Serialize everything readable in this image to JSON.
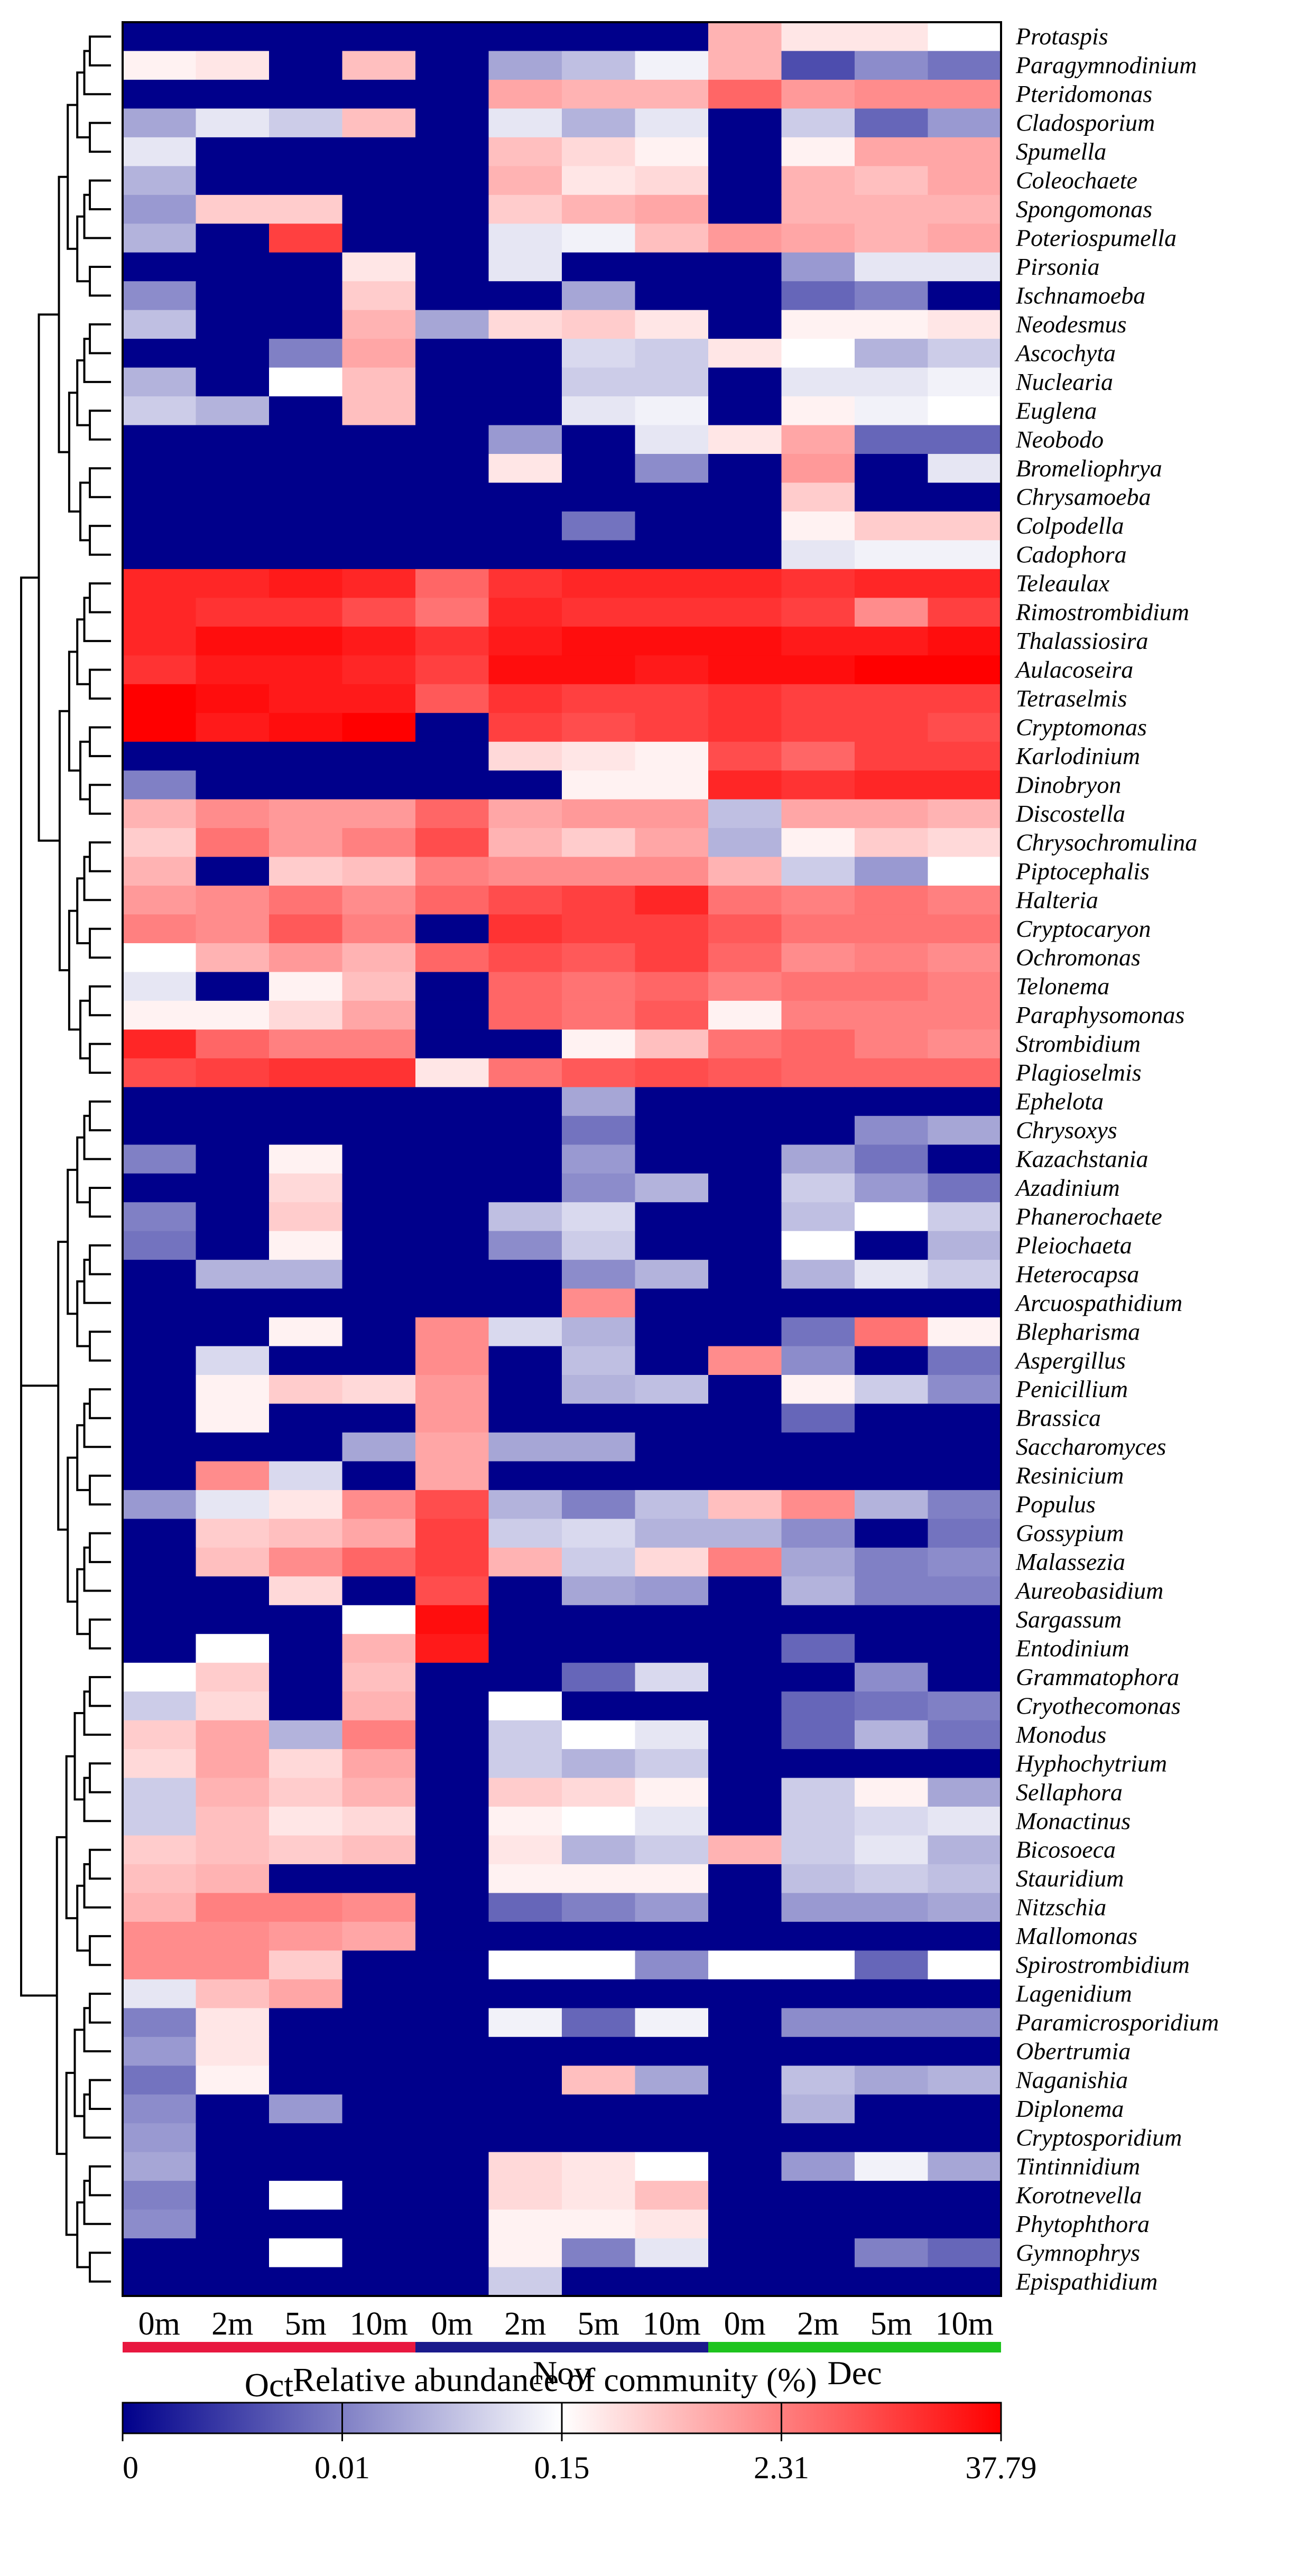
{
  "chart_data": {
    "type": "heatmap",
    "title": "",
    "colorbar_title": "Relative abundance of community (%)",
    "colorbar_ticks": [
      "0",
      "0.01",
      "0.15",
      "2.31",
      "37.79"
    ],
    "colorscale": [
      "#00008b",
      "#ffffff",
      "#ff0000"
    ],
    "column_labels": [
      "0m",
      "2m",
      "5m",
      "10m",
      "0m",
      "2m",
      "5m",
      "10m",
      "0m",
      "2m",
      "5m",
      "10m"
    ],
    "months": [
      {
        "name": "Oct",
        "color": "#e8173f"
      },
      {
        "name": "Nov",
        "color": "#1a1a8c"
      },
      {
        "name": "Dec",
        "color": "#1ec41e"
      }
    ],
    "rows": [
      "Protaspis",
      "Paragymnodinium",
      "Pteridomonas",
      "Cladosporium",
      "Spumella",
      "Coleochaete",
      "Spongomonas",
      "Poteriospumella",
      "Pirsonia",
      "Ischnamoeba",
      "Neodesmus",
      "Ascochyta",
      "Nuclearia",
      "Euglena",
      "Neobodo",
      "Bromeliophrya",
      "Chrysamoeba",
      "Colpodella",
      "Cadophora",
      "Teleaulax",
      "Rimostrombidium",
      "Thalassiosira",
      "Aulacoseira",
      "Tetraselmis",
      "Cryptomonas",
      "Karlodinium",
      "Dinobryon",
      "Discostella",
      "Chrysochromulina",
      "Piptocephalis",
      "Halteria",
      "Cryptocaryon",
      "Ochromonas",
      "Telonema",
      "Paraphysomonas",
      "Strombidium",
      "Plagioselmis",
      "Ephelota",
      "Chrysoxys",
      "Kazachstania",
      "Azadinium",
      "Phanerochaete",
      "Pleiochaeta",
      "Heterocapsa",
      "Arcuospathidium",
      "Blepharisma",
      "Aspergillus",
      "Penicillium",
      "Brassica",
      "Saccharomyces",
      "Resinicium",
      "Populus",
      "Gossypium",
      "Malassezia",
      "Aureobasidium",
      "Sargassum",
      "Entodinium",
      "Grammatophora",
      "Cryothecomonas",
      "Monodus",
      "Hyphochytrium",
      "Sellaphora",
      "Monactinus",
      "Bicosoeca",
      "Stauridium",
      "Nitzschia",
      "Mallomonas",
      "Spirostrombidium",
      "Lagenidium",
      "Paramicrosporidium",
      "Obertrumia",
      "Naganishia",
      "Diplonema",
      "Cryptosporidium",
      "Tintinnidium",
      "Korotnevella",
      "Phytophthora",
      "Gymnophrys",
      "Epispathidium"
    ],
    "values": [
      [
        -1,
        -1,
        -1,
        -1,
        -1,
        -1,
        -1,
        -1,
        0.3,
        0.1,
        0.1,
        0.0
      ],
      [
        0.05,
        0.1,
        -1,
        0.25,
        -1,
        -0.35,
        -0.25,
        -0.05,
        0.3,
        -0.7,
        -0.45,
        -0.55
      ],
      [
        -1,
        -1,
        -1,
        -1,
        -1,
        0.35,
        0.3,
        0.3,
        0.6,
        0.4,
        0.45,
        0.45
      ],
      [
        -0.35,
        -0.1,
        -0.2,
        0.25,
        -1,
        -0.1,
        -0.3,
        -0.1,
        -1,
        -0.2,
        -0.6,
        -0.4
      ],
      [
        -0.1,
        -1,
        -1,
        -1,
        -1,
        0.25,
        0.15,
        0.05,
        -1,
        0.05,
        0.35,
        0.35
      ],
      [
        -0.3,
        -1,
        -1,
        -1,
        -1,
        0.3,
        0.1,
        0.15,
        -1,
        0.3,
        0.25,
        0.35
      ],
      [
        -0.4,
        0.2,
        0.2,
        -1,
        -1,
        0.2,
        0.3,
        0.35,
        -1,
        0.3,
        0.3,
        0.3
      ],
      [
        -0.3,
        -1,
        0.75,
        -1,
        -1,
        -0.1,
        -0.05,
        0.25,
        0.4,
        0.35,
        0.3,
        0.35
      ],
      [
        -1,
        -1,
        -1,
        0.1,
        -1,
        -0.1,
        -1,
        -1,
        -1,
        -0.4,
        -0.1,
        -0.1
      ],
      [
        -0.45,
        -1,
        -1,
        0.2,
        -1,
        -1,
        -0.35,
        -1,
        -1,
        -0.6,
        -0.5,
        -1
      ],
      [
        -0.25,
        -1,
        -1,
        0.3,
        -0.35,
        0.15,
        0.2,
        0.1,
        -1,
        0.05,
        0.05,
        0.1
      ],
      [
        -1,
        -1,
        -0.5,
        0.35,
        -1,
        -1,
        -0.15,
        -0.2,
        0.1,
        0.0,
        -0.3,
        -0.2
      ],
      [
        -0.3,
        -1,
        0.0,
        0.25,
        -1,
        -1,
        -0.2,
        -0.2,
        -1,
        -0.1,
        -0.1,
        -0.05
      ],
      [
        -0.2,
        -0.3,
        -1,
        0.25,
        -1,
        -1,
        -0.1,
        -0.05,
        -1,
        0.05,
        -0.05,
        0.0
      ],
      [
        -1,
        -1,
        -1,
        -1,
        -1,
        -0.4,
        -1,
        -0.1,
        0.1,
        0.35,
        -0.6,
        -0.6
      ],
      [
        -1,
        -1,
        -1,
        -1,
        -1,
        0.1,
        -1,
        -0.45,
        -1,
        0.4,
        -1,
        -0.1
      ],
      [
        -1,
        -1,
        -1,
        -1,
        -1,
        -1,
        -1,
        -1,
        -1,
        0.2,
        -1,
        -1
      ],
      [
        -1,
        -1,
        -1,
        -1,
        -1,
        -1,
        -0.55,
        -1,
        -1,
        0.05,
        0.2,
        0.2
      ],
      [
        -1,
        -1,
        -1,
        -1,
        -1,
        -1,
        -1,
        -1,
        -1,
        -0.1,
        -0.05,
        -0.05
      ],
      [
        0.85,
        0.85,
        0.9,
        0.85,
        0.6,
        0.8,
        0.85,
        0.85,
        0.85,
        0.8,
        0.85,
        0.85
      ],
      [
        0.85,
        0.8,
        0.8,
        0.7,
        0.55,
        0.85,
        0.8,
        0.8,
        0.8,
        0.75,
        0.45,
        0.75
      ],
      [
        0.85,
        0.95,
        0.95,
        0.9,
        0.8,
        0.9,
        0.95,
        0.95,
        0.95,
        0.9,
        0.9,
        0.95
      ],
      [
        0.8,
        0.9,
        0.9,
        0.85,
        0.75,
        0.95,
        0.95,
        0.9,
        0.95,
        0.95,
        1.0,
        1.0
      ],
      [
        1.0,
        0.95,
        0.9,
        0.9,
        0.65,
        0.8,
        0.75,
        0.75,
        0.8,
        0.75,
        0.75,
        0.75
      ],
      [
        1.0,
        0.9,
        0.95,
        1.0,
        -1,
        0.75,
        0.7,
        0.75,
        0.8,
        0.75,
        0.75,
        0.7
      ],
      [
        -1,
        -1,
        -1,
        -1,
        -1,
        0.15,
        0.1,
        0.05,
        0.7,
        0.6,
        0.75,
        0.75
      ],
      [
        -0.5,
        -1,
        -1,
        -1,
        -1,
        -1,
        0.05,
        0.05,
        0.85,
        0.8,
        0.85,
        0.85
      ],
      [
        0.3,
        0.45,
        0.4,
        0.4,
        0.6,
        0.35,
        0.4,
        0.4,
        -0.25,
        0.35,
        0.35,
        0.3
      ],
      [
        0.2,
        0.55,
        0.4,
        0.5,
        0.7,
        0.3,
        0.2,
        0.35,
        -0.3,
        0.05,
        0.2,
        0.15
      ],
      [
        0.3,
        -1,
        0.2,
        0.25,
        0.5,
        0.45,
        0.45,
        0.45,
        0.3,
        -0.2,
        -0.4,
        0.0
      ],
      [
        0.4,
        0.45,
        0.55,
        0.45,
        0.6,
        0.7,
        0.75,
        0.85,
        0.55,
        0.5,
        0.55,
        0.5
      ],
      [
        0.5,
        0.45,
        0.65,
        0.5,
        -1,
        0.8,
        0.75,
        0.75,
        0.65,
        0.55,
        0.55,
        0.55
      ],
      [
        0.0,
        0.3,
        0.4,
        0.3,
        0.6,
        0.7,
        0.65,
        0.75,
        0.6,
        0.45,
        0.5,
        0.45
      ],
      [
        -0.1,
        -1,
        0.05,
        0.25,
        -1,
        0.6,
        0.55,
        0.6,
        0.5,
        0.55,
        0.55,
        0.5
      ],
      [
        0.05,
        0.05,
        0.15,
        0.35,
        -1,
        0.6,
        0.55,
        0.65,
        0.05,
        0.5,
        0.5,
        0.5
      ],
      [
        0.85,
        0.6,
        0.5,
        0.5,
        -1,
        -1,
        0.05,
        0.25,
        0.55,
        0.6,
        0.5,
        0.45
      ],
      [
        0.7,
        0.75,
        0.8,
        0.8,
        0.1,
        0.55,
        0.65,
        0.7,
        0.65,
        0.6,
        0.6,
        0.6
      ],
      [
        -1,
        -1,
        -1,
        -1,
        -1,
        -1,
        -0.35,
        -1,
        -1,
        -1,
        -1,
        -1
      ],
      [
        -1,
        -1,
        -1,
        -1,
        -1,
        -1,
        -0.55,
        -1,
        -1,
        -1,
        -0.45,
        -0.35
      ],
      [
        -0.5,
        -1,
        0.05,
        -1,
        -1,
        -1,
        -0.4,
        -1,
        -1,
        -0.35,
        -0.55,
        -1
      ],
      [
        -1,
        -1,
        0.15,
        -1,
        -1,
        -1,
        -0.45,
        -0.3,
        -1,
        -0.2,
        -0.4,
        -0.55
      ],
      [
        -0.5,
        -1,
        0.2,
        -1,
        -1,
        -0.25,
        -0.15,
        -1,
        -1,
        -0.25,
        0.0,
        -0.2
      ],
      [
        -0.55,
        -1,
        0.05,
        -1,
        -1,
        -0.45,
        -0.2,
        -1,
        -1,
        0.0,
        -1,
        -0.3
      ],
      [
        -1,
        -0.3,
        -0.3,
        -1,
        -1,
        -1,
        -0.45,
        -0.3,
        -1,
        -0.3,
        -0.1,
        -0.2
      ],
      [
        -1,
        -1,
        -1,
        -1,
        -1,
        -1,
        0.45,
        -1,
        -1,
        -1,
        -1,
        -1
      ],
      [
        -1,
        -1,
        0.05,
        -1,
        0.45,
        -0.15,
        -0.3,
        -1,
        -1,
        -0.55,
        0.55,
        0.05
      ],
      [
        -1,
        -0.15,
        -1,
        -1,
        0.45,
        -1,
        -0.25,
        -1,
        0.45,
        -0.45,
        -1,
        -0.55
      ],
      [
        -1,
        0.05,
        0.2,
        0.15,
        0.4,
        -1,
        -0.3,
        -0.25,
        -1,
        0.05,
        -0.2,
        -0.45
      ],
      [
        -1,
        0.05,
        -1,
        -1,
        0.4,
        -1,
        -1,
        -1,
        -1,
        -0.6,
        -1,
        -1
      ],
      [
        -1,
        -1,
        -1,
        -0.35,
        0.35,
        -0.35,
        -0.35,
        -1,
        -1,
        -1,
        -1,
        -1
      ],
      [
        -1,
        0.45,
        -0.15,
        -1,
        0.35,
        -1,
        -1,
        -1,
        -1,
        -1,
        -1,
        -1
      ],
      [
        -0.4,
        -0.1,
        0.1,
        0.45,
        0.7,
        -0.3,
        -0.5,
        -0.25,
        0.25,
        0.45,
        -0.3,
        -0.5
      ],
      [
        -1,
        0.2,
        0.25,
        0.35,
        0.75,
        -0.2,
        -0.15,
        -0.3,
        -0.3,
        -0.45,
        -1,
        -0.55
      ],
      [
        -1,
        0.25,
        0.45,
        0.6,
        0.75,
        0.3,
        -0.2,
        0.15,
        0.5,
        -0.35,
        -0.5,
        -0.45
      ],
      [
        -1,
        -1,
        0.15,
        -1,
        0.7,
        -1,
        -0.35,
        -0.4,
        -1,
        -0.3,
        -0.5,
        -0.5
      ],
      [
        -1,
        -1,
        -1,
        0.0,
        0.95,
        -1,
        -1,
        -1,
        -1,
        -1,
        -1,
        -1
      ],
      [
        -1,
        0.0,
        -1,
        0.3,
        0.9,
        -1,
        -1,
        -1,
        -1,
        -0.6,
        -1,
        -1
      ],
      [
        0.0,
        0.2,
        -1,
        0.25,
        -1,
        -1,
        -0.6,
        -0.15,
        -1,
        -1,
        -0.45,
        -1
      ],
      [
        -0.2,
        0.15,
        -1,
        0.3,
        -1,
        0.0,
        -1,
        -1,
        -1,
        -0.6,
        -0.55,
        -0.5
      ],
      [
        0.2,
        0.35,
        -0.3,
        0.5,
        -1,
        -0.2,
        0.0,
        -0.1,
        -1,
        -0.6,
        -0.3,
        -0.55
      ],
      [
        0.15,
        0.35,
        0.15,
        0.35,
        -1,
        -0.2,
        -0.3,
        -0.2,
        -1,
        -1,
        -1,
        -1
      ],
      [
        -0.2,
        0.3,
        0.2,
        0.3,
        -1,
        0.2,
        0.15,
        0.05,
        -1,
        -0.2,
        0.05,
        -0.35
      ],
      [
        -0.2,
        0.25,
        0.1,
        0.15,
        -1,
        0.05,
        0.0,
        -0.1,
        -1,
        -0.2,
        -0.15,
        -0.1
      ],
      [
        0.2,
        0.25,
        0.2,
        0.25,
        -1,
        0.1,
        -0.3,
        -0.2,
        0.3,
        -0.2,
        -0.1,
        -0.3
      ],
      [
        0.25,
        0.3,
        -1,
        -1,
        -1,
        0.05,
        0.05,
        0.05,
        -1,
        -0.25,
        -0.2,
        -0.25
      ],
      [
        0.3,
        0.5,
        0.5,
        0.45,
        -1,
        -0.6,
        -0.5,
        -0.4,
        -1,
        -0.4,
        -0.4,
        -0.35
      ],
      [
        0.45,
        0.45,
        0.4,
        0.35,
        -1,
        -1,
        -1,
        -1,
        -1,
        -1,
        -1,
        -1
      ],
      [
        0.45,
        0.45,
        0.2,
        -1,
        -1,
        0.0,
        0.0,
        -0.45,
        0.0,
        0.0,
        -0.6,
        0.0
      ],
      [
        -0.1,
        0.25,
        0.35,
        -1,
        -1,
        -1,
        -1,
        -1,
        -1,
        -1,
        -1,
        -1
      ],
      [
        -0.5,
        0.1,
        -1,
        -1,
        -1,
        -0.05,
        -0.6,
        -0.05,
        -1,
        -0.45,
        -0.45,
        -0.45
      ],
      [
        -0.4,
        0.1,
        -1,
        -1,
        -1,
        -1,
        -1,
        -1,
        -1,
        -1,
        -1,
        -1
      ],
      [
        -0.55,
        0.05,
        -1,
        -1,
        -1,
        -1,
        0.25,
        -0.35,
        -1,
        -0.25,
        -0.35,
        -0.3
      ],
      [
        -0.45,
        -1,
        -0.4,
        -1,
        -1,
        -1,
        -1,
        -1,
        -1,
        -0.3,
        -1,
        -1
      ],
      [
        -0.4,
        -1,
        -1,
        -1,
        -1,
        -1,
        -1,
        -1,
        -1,
        -1,
        -1,
        -1
      ],
      [
        -0.35,
        -1,
        -1,
        -1,
        -1,
        0.15,
        0.1,
        0.0,
        -1,
        -0.4,
        -0.05,
        -0.35
      ],
      [
        -0.5,
        -1,
        0.0,
        -1,
        -1,
        0.15,
        0.1,
        0.25,
        -1,
        -1,
        -1,
        -1
      ],
      [
        -0.45,
        -1,
        -1,
        -1,
        -1,
        0.05,
        0.05,
        0.1,
        -1,
        -1,
        -1,
        -1
      ],
      [
        -1,
        -1,
        0.0,
        -1,
        -1,
        0.05,
        -0.5,
        -0.1,
        -1,
        -1,
        -0.5,
        -0.6
      ],
      [
        -1,
        -1,
        -1,
        -1,
        -1,
        -0.2,
        -1,
        -1,
        -1,
        -1,
        -1,
        -1
      ]
    ]
  }
}
